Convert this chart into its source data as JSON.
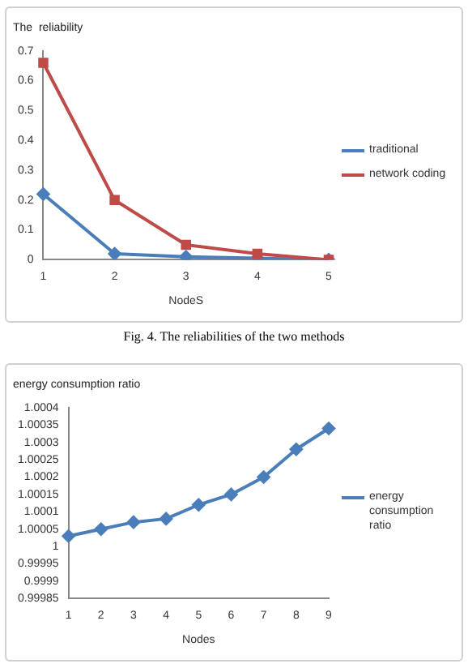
{
  "chart_data": [
    {
      "type": "line",
      "title": "The  reliability",
      "xlabel": "NodeS",
      "categories": [
        "1",
        "2",
        "3",
        "4",
        "5"
      ],
      "series": [
        {
          "name": "traditional",
          "color": "#4a7ebb",
          "marker": "diamond",
          "values": [
            0.22,
            0.02,
            0.01,
            0.005,
            0
          ]
        },
        {
          "name": "network coding",
          "color": "#be4b48",
          "marker": "square",
          "values": [
            0.66,
            0.2,
            0.05,
            0.02,
            0
          ]
        }
      ],
      "ylim": [
        0,
        0.7
      ],
      "yticks": [
        0,
        0.1,
        0.2,
        0.3,
        0.4,
        0.5,
        0.6,
        0.7
      ],
      "grid": false,
      "legend": "right",
      "annotations": [
        "Fig. 4.  The reliabilities of the two methods"
      ]
    },
    {
      "type": "line",
      "title": "energy consumption ratio",
      "xlabel": "Nodes",
      "categories": [
        "1",
        "2",
        "3",
        "4",
        "5",
        "6",
        "7",
        "8",
        "9"
      ],
      "series": [
        {
          "name": "energy consumption ratio",
          "color": "#4a7ebb",
          "marker": "diamond",
          "values": [
            1.00003,
            1.00005,
            1.00007,
            1.00008,
            1.00012,
            1.00015,
            1.0002,
            1.00028,
            1.00034
          ]
        }
      ],
      "ylim": [
        0.99985,
        1.0004
      ],
      "yticks": [
        0.99985,
        0.9999,
        0.99995,
        1,
        1.00005,
        1.0001,
        1.00015,
        1.0002,
        1.00025,
        1.0003,
        1.00035,
        1.0004
      ],
      "grid": false,
      "legend": "right"
    }
  ]
}
